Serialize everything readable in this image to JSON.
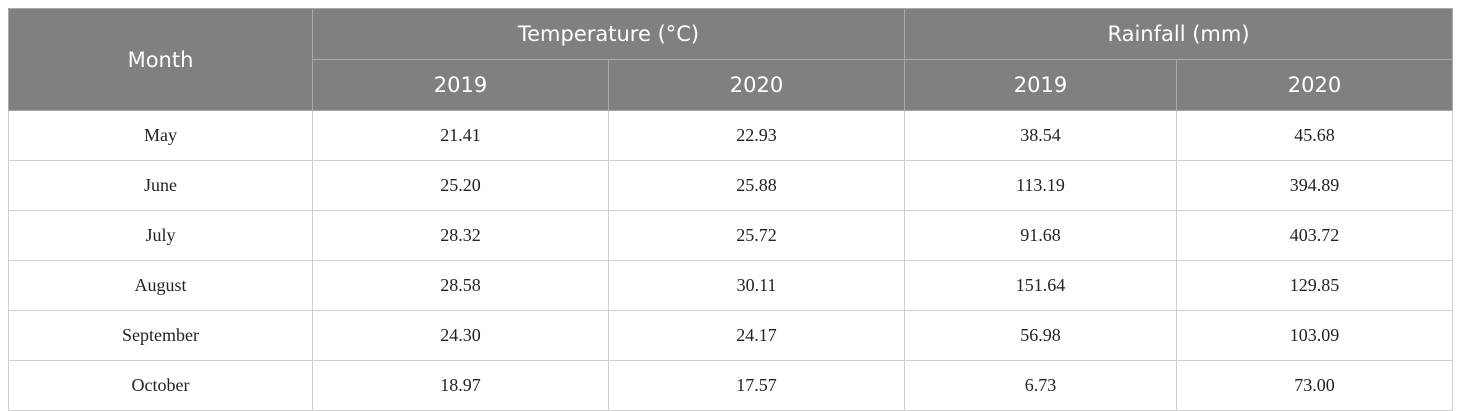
{
  "table": {
    "header": {
      "month": "Month",
      "groups": [
        {
          "title": "Temperature (°C)",
          "years": [
            "2019",
            "2020"
          ]
        },
        {
          "title": "Rainfall (mm)",
          "years": [
            "2019",
            "2020"
          ]
        }
      ]
    },
    "rows": [
      [
        "May",
        "21.41",
        "22.93",
        "38.54",
        "45.68"
      ],
      [
        "June",
        "25.20",
        "25.88",
        "113.19",
        "394.89"
      ],
      [
        "July",
        "28.32",
        "25.72",
        "91.68",
        "403.72"
      ],
      [
        "August",
        "28.58",
        "30.11",
        "151.64",
        "129.85"
      ],
      [
        "September",
        "24.30",
        "24.17",
        "56.98",
        "103.09"
      ],
      [
        "October",
        "18.97",
        "17.57",
        "6.73",
        "73.00"
      ]
    ]
  }
}
